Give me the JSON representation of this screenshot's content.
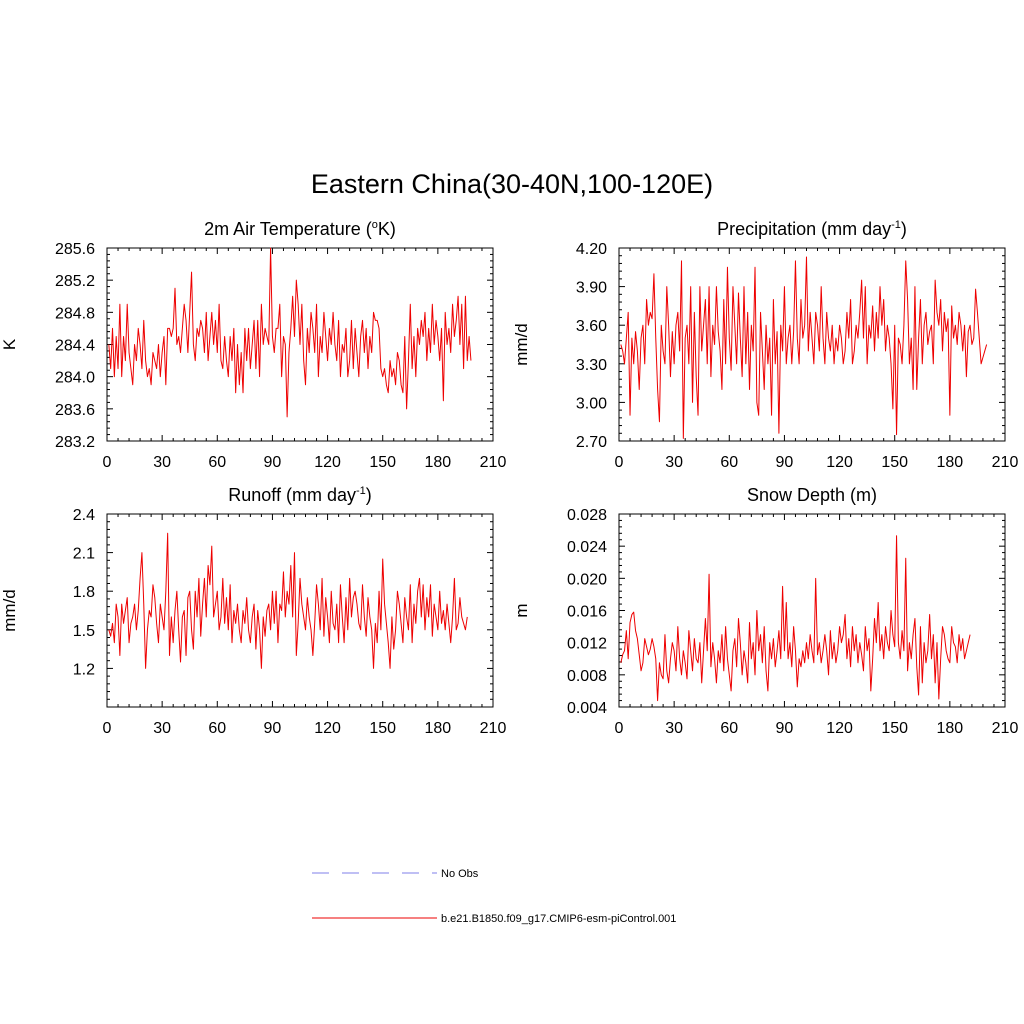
{
  "figure": {
    "title": "Eastern China(30-40N,100-120E)"
  },
  "colors": {
    "model_line": "#ee0000",
    "obs_line": "#9999ee",
    "axis": "#000000"
  },
  "chart_data": [
    {
      "type": "line",
      "title": "2m Air Temperature (",
      "title_sup": "o",
      "title_end": "K)",
      "xlabel": "",
      "ylabel": "K",
      "xlim": [
        0,
        210
      ],
      "ylim": [
        283.2,
        285.6
      ],
      "xticks": [
        0,
        30,
        60,
        90,
        120,
        150,
        180,
        210
      ],
      "yticks": [
        283.2,
        283.6,
        284.0,
        284.4,
        284.8,
        285.2,
        285.6
      ],
      "ytick_decimals": 1,
      "series": [
        {
          "name": "b.e21.B1850.f09_g17.CMIP6-esm-piControl.001",
          "x_start": 1,
          "values": [
            284.4,
            284.1,
            284.6,
            284.0,
            284.5,
            284.1,
            284.9,
            284.0,
            284.5,
            284.2,
            284.9,
            284.3,
            284.1,
            283.9,
            284.4,
            284.2,
            284.6,
            284.4,
            284.1,
            284.7,
            284.2,
            284.0,
            284.1,
            283.9,
            284.3,
            284.2,
            284.1,
            284.4,
            284.0,
            284.3,
            284.5,
            283.9,
            284.6,
            284.6,
            284.5,
            284.6,
            285.1,
            284.4,
            284.5,
            284.3,
            284.6,
            284.9,
            284.7,
            284.3,
            284.8,
            285.3,
            284.4,
            284.2,
            284.6,
            284.5,
            284.7,
            284.6,
            284.3,
            284.8,
            284.2,
            284.5,
            284.8,
            284.4,
            284.7,
            284.3,
            284.9,
            284.2,
            284.1,
            284.5,
            284.2,
            284.0,
            284.5,
            284.2,
            284.6,
            283.8,
            284.4,
            283.9,
            284.3,
            283.8,
            284.6,
            284.2,
            284.6,
            284.1,
            284.4,
            284.7,
            284.1,
            284.7,
            284.0,
            284.9,
            284.4,
            284.6,
            284.5,
            284.4,
            285.6,
            284.5,
            284.3,
            284.6,
            284.6,
            284.9,
            284.0,
            284.5,
            284.4,
            283.5,
            284.3,
            284.6,
            285.0,
            284.5,
            285.2,
            284.9,
            284.4,
            284.9,
            284.2,
            283.9,
            284.6,
            284.3,
            284.8,
            284.6,
            284.3,
            284.9,
            284.0,
            284.5,
            284.3,
            284.8,
            284.5,
            284.2,
            284.6,
            284.4,
            284.8,
            284.4,
            284.2,
            284.7,
            284.0,
            284.4,
            284.3,
            284.6,
            284.0,
            284.2,
            284.7,
            284.1,
            284.6,
            284.3,
            284.0,
            284.5,
            284.7,
            284.3,
            284.6,
            284.1,
            284.5,
            284.3,
            284.8,
            284.7,
            284.7,
            284.6,
            284.1,
            284.0,
            284.1,
            283.9,
            283.8,
            284.2,
            284.0,
            284.1,
            283.9,
            284.3,
            284.2,
            283.9,
            283.8,
            284.5,
            283.6,
            284.2,
            284.9,
            284.1,
            284.5,
            284.0,
            284.6,
            284.4,
            284.7,
            284.5,
            284.8,
            284.2,
            284.6,
            284.3,
            284.9,
            284.4,
            284.7,
            284.5,
            284.2,
            284.6,
            283.7,
            284.8,
            284.4,
            284.6,
            284.3,
            284.9,
            284.5,
            284.7,
            285.0,
            284.4,
            284.9,
            284.1,
            285.0,
            284.2,
            284.5,
            284.2
          ]
        }
      ]
    },
    {
      "type": "line",
      "title": "Precipitation (mm day",
      "title_sup": "-1",
      "title_end": ")",
      "xlabel": "",
      "ylabel": "mm/d",
      "xlim": [
        0,
        210
      ],
      "ylim": [
        2.7,
        4.2
      ],
      "xticks": [
        0,
        30,
        60,
        90,
        120,
        150,
        180,
        210
      ],
      "yticks": [
        2.7,
        3.0,
        3.3,
        3.6,
        3.9,
        4.2
      ],
      "ytick_decimals": 2,
      "series": [
        {
          "name": "b.e21.B1850.f09_g17.CMIP6-esm-piControl.001",
          "x_start": 1,
          "values": [
            3.45,
            3.4,
            3.3,
            3.5,
            3.7,
            2.9,
            3.5,
            3.3,
            3.55,
            3.4,
            3.1,
            3.5,
            3.6,
            3.3,
            3.8,
            3.6,
            3.7,
            3.65,
            4.0,
            3.5,
            3.1,
            2.85,
            3.6,
            3.4,
            3.3,
            3.9,
            3.6,
            3.2,
            3.55,
            3.3,
            3.6,
            3.7,
            3.4,
            4.1,
            2.72,
            3.5,
            3.6,
            3.3,
            3.9,
            3.0,
            3.7,
            3.2,
            2.9,
            3.9,
            3.4,
            3.6,
            3.8,
            3.3,
            3.9,
            3.2,
            3.6,
            3.45,
            3.9,
            3.55,
            3.4,
            3.1,
            3.8,
            3.3,
            4.05,
            3.5,
            3.25,
            3.9,
            3.6,
            3.3,
            3.85,
            3.5,
            3.2,
            3.9,
            3.3,
            3.7,
            3.1,
            3.6,
            3.4,
            4.05,
            3.0,
            2.9,
            3.7,
            3.4,
            3.1,
            3.6,
            3.3,
            3.5,
            2.9,
            3.8,
            3.3,
            3.55,
            2.76,
            3.6,
            3.4,
            3.9,
            3.3,
            3.5,
            3.6,
            3.3,
            3.55,
            4.1,
            3.5,
            3.3,
            3.8,
            3.5,
            3.6,
            4.13,
            3.4,
            3.7,
            3.5,
            3.3,
            3.7,
            3.6,
            3.4,
            3.9,
            3.5,
            3.3,
            3.7,
            3.5,
            3.4,
            3.6,
            3.3,
            3.5,
            3.4,
            3.6,
            3.5,
            3.3,
            3.4,
            3.7,
            3.5,
            3.8,
            3.3,
            3.4,
            3.6,
            3.5,
            3.7,
            3.95,
            3.5,
            3.9,
            3.3,
            3.6,
            3.5,
            3.75,
            3.4,
            3.7,
            3.5,
            3.9,
            3.6,
            3.8,
            3.4,
            3.6,
            3.5,
            3.3,
            2.95,
            3.6,
            2.75,
            3.5,
            3.45,
            3.3,
            3.6,
            4.1,
            3.8,
            3.3,
            3.5,
            3.1,
            3.9,
            3.1,
            3.5,
            3.8,
            3.3,
            3.6,
            3.7,
            3.45,
            3.55,
            3.6,
            3.3,
            3.95,
            3.7,
            3.6,
            3.8,
            3.4,
            3.7,
            3.55,
            3.65,
            2.9,
            3.75,
            3.5,
            3.6,
            3.45,
            3.7,
            3.6,
            3.4,
            3.6,
            3.2,
            3.55,
            3.6,
            3.45,
            3.5,
            3.88,
            3.7,
            3.5,
            3.3,
            3.35,
            3.4,
            3.45
          ]
        }
      ]
    },
    {
      "type": "line",
      "title": "Runoff (mm day",
      "title_sup": "-1",
      "title_end": ")",
      "xlabel": "",
      "ylabel": "mm/d",
      "xlim": [
        0,
        210
      ],
      "ylim": [
        0.9,
        2.4
      ],
      "xticks": [
        0,
        30,
        60,
        90,
        120,
        150,
        180,
        210
      ],
      "yticks": [
        1.2,
        1.5,
        1.8,
        2.1,
        2.4
      ],
      "ytick_decimals": 1,
      "series": [
        {
          "name": "b.e21.B1850.f09_g17.CMIP6-esm-piControl.001",
          "x_start": 1,
          "values": [
            1.5,
            1.45,
            1.55,
            1.4,
            1.7,
            1.6,
            1.3,
            1.7,
            1.55,
            1.65,
            1.75,
            1.4,
            1.55,
            1.6,
            1.7,
            1.5,
            1.65,
            1.9,
            2.1,
            1.7,
            1.2,
            1.5,
            1.65,
            1.6,
            1.85,
            1.75,
            1.55,
            1.4,
            1.7,
            1.6,
            1.5,
            1.8,
            2.25,
            1.3,
            1.6,
            1.4,
            1.65,
            1.8,
            1.5,
            1.25,
            1.6,
            1.65,
            1.3,
            1.75,
            1.8,
            1.5,
            1.35,
            1.8,
            1.6,
            1.9,
            1.45,
            1.7,
            1.9,
            1.6,
            2.0,
            1.85,
            2.15,
            1.6,
            1.7,
            1.8,
            1.5,
            1.6,
            1.9,
            1.55,
            1.75,
            1.5,
            1.85,
            1.4,
            1.65,
            1.55,
            1.7,
            1.5,
            1.4,
            1.65,
            1.55,
            1.75,
            1.5,
            1.4,
            1.6,
            1.7,
            1.35,
            1.65,
            1.5,
            1.2,
            1.6,
            1.45,
            1.65,
            1.7,
            1.5,
            1.8,
            1.55,
            1.8,
            1.4,
            1.7,
            1.65,
            1.95,
            1.6,
            1.8,
            1.7,
            2.0,
            1.6,
            2.1,
            1.3,
            1.55,
            1.9,
            1.7,
            1.6,
            1.5,
            1.75,
            1.6,
            1.5,
            1.3,
            1.55,
            1.85,
            1.7,
            1.5,
            1.9,
            1.45,
            1.75,
            1.6,
            1.4,
            1.8,
            1.55,
            1.5,
            1.7,
            1.4,
            1.85,
            1.6,
            1.4,
            1.75,
            1.5,
            1.9,
            1.6,
            1.75,
            1.8,
            1.7,
            1.55,
            1.5,
            1.85,
            1.6,
            1.45,
            1.75,
            1.6,
            1.5,
            1.2,
            1.55,
            1.4,
            1.8,
            1.5,
            2.05,
            1.7,
            1.55,
            1.4,
            1.2,
            1.6,
            1.35,
            1.5,
            1.8,
            1.7,
            1.55,
            1.4,
            1.75,
            1.6,
            1.5,
            1.85,
            1.4,
            1.7,
            1.55,
            1.8,
            1.9,
            1.6,
            1.85,
            1.5,
            1.75,
            1.6,
            1.85,
            1.45,
            1.7,
            1.6,
            1.5,
            1.8,
            1.55,
            1.65,
            1.5,
            1.7,
            1.55,
            1.4,
            1.6,
            1.9,
            1.5,
            1.55,
            1.75,
            1.6,
            1.55,
            1.5,
            1.6
          ]
        }
      ]
    },
    {
      "type": "line",
      "title": "Snow Depth (m)",
      "title_sup": "",
      "title_end": "",
      "xlabel": "",
      "ylabel": "m",
      "xlim": [
        0,
        210
      ],
      "ylim": [
        0.004,
        0.028
      ],
      "xticks": [
        0,
        30,
        60,
        90,
        120,
        150,
        180,
        210
      ],
      "yticks": [
        0.004,
        0.008,
        0.012,
        0.016,
        0.02,
        0.024,
        0.028
      ],
      "ytick_decimals": 3,
      "series": [
        {
          "name": "b.e21.B1850.f09_g17.CMIP6-esm-piControl.001",
          "x_start": 1,
          "values": [
            0.0095,
            0.0105,
            0.011,
            0.0135,
            0.01,
            0.0145,
            0.0155,
            0.0158,
            0.0135,
            0.0125,
            0.0105,
            0.0085,
            0.0095,
            0.0125,
            0.0115,
            0.0105,
            0.0112,
            0.0125,
            0.0115,
            0.01,
            0.0048,
            0.0095,
            0.008,
            0.0075,
            0.013,
            0.0085,
            0.007,
            0.01,
            0.012,
            0.011,
            0.0085,
            0.014,
            0.01,
            0.008,
            0.011,
            0.0095,
            0.0075,
            0.0135,
            0.011,
            0.0085,
            0.0125,
            0.01,
            0.0095,
            0.012,
            0.007,
            0.011,
            0.015,
            0.011,
            0.0205,
            0.009,
            0.012,
            0.01,
            0.007,
            0.011,
            0.0095,
            0.013,
            0.0085,
            0.014,
            0.01,
            0.008,
            0.006,
            0.011,
            0.0125,
            0.009,
            0.015,
            0.012,
            0.008,
            0.011,
            0.0095,
            0.007,
            0.0145,
            0.01,
            0.012,
            0.008,
            0.016,
            0.011,
            0.013,
            0.0095,
            0.014,
            0.0085,
            0.006,
            0.012,
            0.01,
            0.0125,
            0.009,
            0.011,
            0.0135,
            0.01,
            0.019,
            0.011,
            0.017,
            0.01,
            0.012,
            0.009,
            0.014,
            0.011,
            0.0065,
            0.01,
            0.009,
            0.011,
            0.0095,
            0.012,
            0.01,
            0.013,
            0.011,
            0.0095,
            0.02,
            0.0105,
            0.012,
            0.0095,
            0.011,
            0.013,
            0.011,
            0.008,
            0.0135,
            0.01,
            0.012,
            0.0095,
            0.011,
            0.014,
            0.012,
            0.013,
            0.0155,
            0.01,
            0.0125,
            0.009,
            0.014,
            0.011,
            0.013,
            0.0095,
            0.012,
            0.0105,
            0.0085,
            0.014,
            0.011,
            0.0125,
            0.006,
            0.01,
            0.015,
            0.012,
            0.017,
            0.011,
            0.013,
            0.01,
            0.014,
            0.012,
            0.011,
            0.016,
            0.013,
            0.0115,
            0.0253,
            0.012,
            0.01,
            0.0135,
            0.011,
            0.0225,
            0.0085,
            0.012,
            0.01,
            0.013,
            0.015,
            0.009,
            0.0055,
            0.014,
            0.007,
            0.012,
            0.0095,
            0.011,
            0.0155,
            0.01,
            0.013,
            0.007,
            0.012,
            0.005,
            0.01,
            0.014,
            0.013,
            0.011,
            0.01,
            0.0095,
            0.014,
            0.012,
            0.0115,
            0.0095,
            0.013,
            0.011,
            0.0125,
            0.01,
            0.011,
            0.012,
            0.013
          ]
        }
      ]
    }
  ],
  "legend": {
    "entries": [
      {
        "label": "No Obs",
        "style": "dashed"
      },
      {
        "label": "b.e21.B1850.f09_g17.CMIP6-esm-piControl.001",
        "style": "solid"
      }
    ]
  }
}
